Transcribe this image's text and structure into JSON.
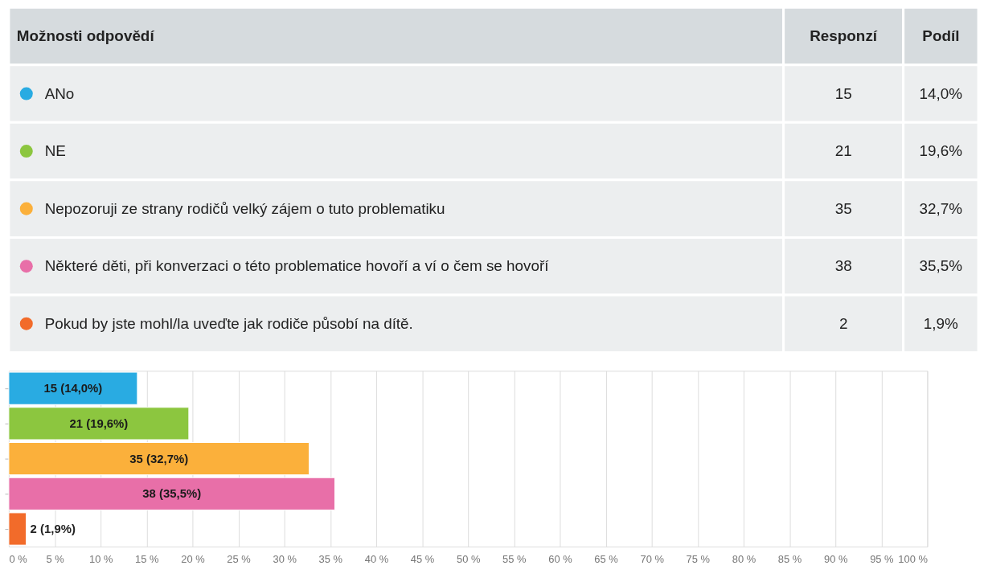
{
  "chart_data": [
    {
      "type": "other",
      "annotations": [
        "Možnosti odpovědí",
        "Responzí",
        "Podíl",
        "ANo",
        "15",
        "14,0%",
        "NE",
        "21",
        "19,6%",
        "Nepozoruji ze strany rodičů velký zájem o tuto problematiku",
        "35",
        "32,7%",
        "Některé děti, při konverzaci o této problematice hovoří a ví o čem se hovoří",
        "38",
        "35,5%",
        "Pokud by jste mohl/la uveďte jak rodiče působí na dítě.",
        "2",
        "1,9%"
      ],
      "colors": [
        "#29abe2",
        "#8cc63f",
        "#fbb03b",
        "#e86fa8",
        "#f26b2a"
      ]
    },
    {
      "type": "bar",
      "orientation": "horizontal",
      "categories": [
        null,
        null,
        null,
        null,
        null
      ],
      "values": [
        14.0,
        19.6,
        32.7,
        35.5,
        1.9
      ],
      "colors": [
        "#29abe2",
        "#8cc63f",
        "#fbb03b",
        "#e86fa8",
        "#f26b2a"
      ],
      "value_labels": [
        "15 (14,0%)",
        "21 (19,6%)",
        "35 (32,7%)",
        "38 (35,5%)",
        "2 (1,9%)"
      ],
      "xlim": [
        0,
        100
      ],
      "xticks": [
        {
          "value": 0,
          "label": "0 %"
        },
        {
          "value": 5,
          "label": "5 %"
        },
        {
          "value": 10,
          "label": "10 %"
        },
        {
          "value": 15,
          "label": "15 %"
        },
        {
          "value": 20,
          "label": "20 %"
        },
        {
          "value": 25,
          "label": "25 %"
        },
        {
          "value": 30,
          "label": "30 %"
        },
        {
          "value": 35,
          "label": "35 %"
        },
        {
          "value": 40,
          "label": "40 %"
        },
        {
          "value": 45,
          "label": "45 %"
        },
        {
          "value": 50,
          "label": "50 %"
        },
        {
          "value": 55,
          "label": "55 %"
        },
        {
          "value": 60,
          "label": "60 %"
        },
        {
          "value": 65,
          "label": "65 %"
        },
        {
          "value": 70,
          "label": "70 %"
        },
        {
          "value": 75,
          "label": "75 %"
        },
        {
          "value": 80,
          "label": "80 %"
        },
        {
          "value": 85,
          "label": "85 %"
        },
        {
          "value": 90,
          "label": "90 %"
        },
        {
          "value": 95,
          "label": "95 %"
        },
        {
          "value": 100,
          "label": "100 %"
        }
      ],
      "grid": "x",
      "tick_labels": "x"
    }
  ]
}
